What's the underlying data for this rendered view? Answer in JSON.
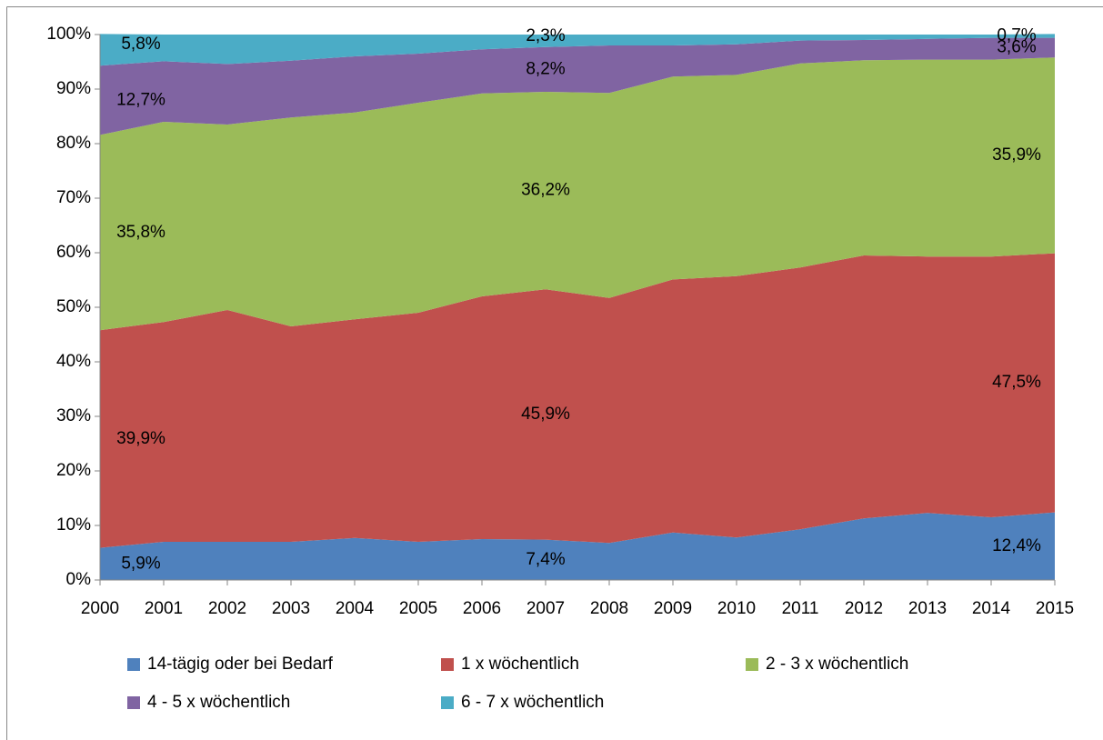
{
  "chart_data": {
    "type": "stacked_area",
    "categories": [
      "2000",
      "2001",
      "2002",
      "2003",
      "2004",
      "2005",
      "2006",
      "2007",
      "2008",
      "2009",
      "2010",
      "2011",
      "2012",
      "2013",
      "2014",
      "2015"
    ],
    "ylim": [
      0,
      100
    ],
    "yticks": [
      {
        "value": 0,
        "label": "0%"
      },
      {
        "value": 10,
        "label": "10%"
      },
      {
        "value": 20,
        "label": "20%"
      },
      {
        "value": 30,
        "label": "30%"
      },
      {
        "value": 40,
        "label": "40%"
      },
      {
        "value": 50,
        "label": "50%"
      },
      {
        "value": 60,
        "label": "60%"
      },
      {
        "value": 70,
        "label": "70%"
      },
      {
        "value": 80,
        "label": "80%"
      },
      {
        "value": 90,
        "label": "90%"
      },
      {
        "value": 100,
        "label": "100%"
      }
    ],
    "legend": "bottom",
    "series": [
      {
        "name": "14-tägig oder bei Bedarf",
        "color": "#4f81bd",
        "values": [
          5.9,
          7.0,
          7.0,
          7.0,
          7.7,
          7.0,
          7.5,
          7.4,
          6.8,
          8.7,
          7.8,
          9.3,
          11.3,
          12.3,
          11.5,
          12.4
        ],
        "value_labels": [
          "5,9%",
          null,
          null,
          null,
          null,
          null,
          null,
          "7,4%",
          null,
          null,
          null,
          null,
          null,
          null,
          null,
          "12,4%"
        ]
      },
      {
        "name": "1 x wöchentlich",
        "color": "#c0504d",
        "values": [
          39.9,
          40.3,
          42.5,
          39.5,
          40.1,
          42.0,
          44.5,
          45.9,
          44.9,
          46.4,
          47.9,
          48.0,
          48.2,
          47.0,
          47.8,
          47.5
        ],
        "value_labels": [
          "39,9%",
          null,
          null,
          null,
          null,
          null,
          null,
          "45,9%",
          null,
          null,
          null,
          null,
          null,
          null,
          null,
          "47,5%"
        ]
      },
      {
        "name": "2 - 3 x wöchentlich",
        "color": "#9bbb59",
        "values": [
          35.8,
          36.7,
          34.0,
          38.3,
          37.9,
          38.5,
          37.2,
          36.2,
          37.6,
          37.2,
          36.9,
          37.4,
          35.8,
          36.1,
          36.1,
          35.9
        ],
        "value_labels": [
          "35,8%",
          null,
          null,
          null,
          null,
          null,
          null,
          "36,2%",
          null,
          null,
          null,
          null,
          null,
          null,
          null,
          "35,9%"
        ]
      },
      {
        "name": "4 - 5 x wöchentlich",
        "color": "#8064a2",
        "values": [
          12.7,
          11.1,
          11.1,
          10.4,
          10.3,
          9.0,
          8.1,
          8.2,
          8.7,
          5.7,
          5.6,
          4.2,
          3.7,
          3.8,
          4.0,
          3.6
        ],
        "value_labels": [
          "12,7%",
          null,
          null,
          null,
          null,
          null,
          null,
          "8,2%",
          null,
          null,
          null,
          null,
          null,
          null,
          null,
          "3,6%"
        ]
      },
      {
        "name": "6 - 7 x wöchentlich",
        "color": "#4bacc6",
        "values": [
          5.8,
          4.9,
          5.4,
          4.8,
          4.0,
          3.5,
          2.7,
          2.3,
          2.0,
          2.0,
          1.8,
          1.1,
          1.0,
          0.8,
          0.6,
          0.7
        ],
        "value_labels": [
          "5,8%",
          null,
          null,
          null,
          null,
          null,
          null,
          "2,3%",
          null,
          null,
          null,
          null,
          null,
          null,
          null,
          "0,7%"
        ]
      }
    ]
  }
}
